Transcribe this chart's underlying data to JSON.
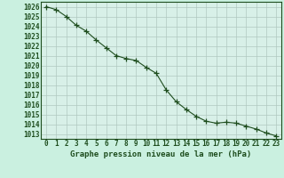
{
  "x": [
    0,
    1,
    2,
    3,
    4,
    5,
    6,
    7,
    8,
    9,
    10,
    11,
    12,
    13,
    14,
    15,
    16,
    17,
    18,
    19,
    20,
    21,
    22,
    23
  ],
  "y": [
    1026.0,
    1025.7,
    1025.0,
    1024.1,
    1023.5,
    1022.6,
    1021.8,
    1021.0,
    1020.7,
    1020.5,
    1019.8,
    1019.2,
    1017.5,
    1016.3,
    1015.5,
    1014.8,
    1014.3,
    1014.1,
    1014.2,
    1014.1,
    1013.8,
    1013.5,
    1013.1,
    1012.8
  ],
  "line_color": "#1e4d1e",
  "marker": "+",
  "marker_color": "#1e4d1e",
  "bg_color": "#caf0e0",
  "grid_color": "#b0c8c0",
  "plot_bg": "#d8f0e8",
  "ylim_min": 1012.5,
  "ylim_max": 1026.5,
  "yticks": [
    1013,
    1014,
    1015,
    1016,
    1017,
    1018,
    1019,
    1020,
    1021,
    1022,
    1023,
    1024,
    1025,
    1026
  ],
  "xticks": [
    0,
    1,
    2,
    3,
    4,
    5,
    6,
    7,
    8,
    9,
    10,
    11,
    12,
    13,
    14,
    15,
    16,
    17,
    18,
    19,
    20,
    21,
    22,
    23
  ],
  "xlabel": "Graphe pression niveau de la mer (hPa)",
  "xlabel_color": "#1e4d1e",
  "tick_color": "#1e4d1e",
  "axis_color": "#1e4d1e",
  "tick_fontsize": 5.5,
  "label_fontsize": 6.5,
  "linewidth": 0.8,
  "markersize": 4.5
}
